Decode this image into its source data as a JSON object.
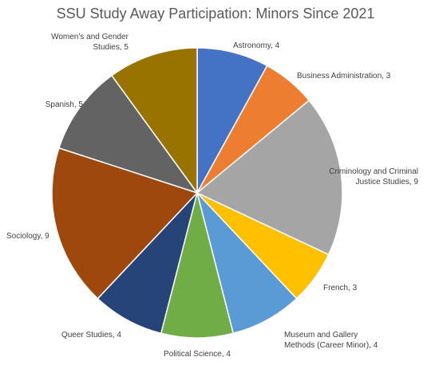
{
  "chart_data": {
    "type": "pie",
    "title": "SSU Study Away Participation: Minors Since 2021",
    "slices": [
      {
        "name": "Astronomy",
        "value": 4,
        "color": "#4472C4",
        "label_lines": [
          "Astronomy, 4"
        ]
      },
      {
        "name": "Business Administration",
        "value": 3,
        "color": "#ED7D31",
        "label_lines": [
          "Business Administration, 3"
        ]
      },
      {
        "name": "Criminology and Criminal Justice Studies",
        "value": 9,
        "color": "#A5A5A5",
        "label_lines": [
          "Criminology and Criminal",
          "Justice Studies, 9"
        ]
      },
      {
        "name": "French",
        "value": 3,
        "color": "#FFC000",
        "label_lines": [
          "French, 3"
        ]
      },
      {
        "name": "Museum and Gallery Methods (Career Minor)",
        "value": 4,
        "color": "#5B9BD5",
        "label_lines": [
          "Museum and Gallery",
          "Methods (Career Minor), 4"
        ]
      },
      {
        "name": "Political Science",
        "value": 4,
        "color": "#70AD47",
        "label_lines": [
          "Political Science, 4"
        ]
      },
      {
        "name": "Queer Studies",
        "value": 4,
        "color": "#264478",
        "label_lines": [
          "Queer Studies, 4"
        ]
      },
      {
        "name": "Sociology",
        "value": 9,
        "color": "#9E480E",
        "label_lines": [
          "Sociology, 9"
        ]
      },
      {
        "name": "Spanish",
        "value": 5,
        "color": "#636363",
        "label_lines": [
          "Spanish, 5"
        ]
      },
      {
        "name": "Women's and Gender Studies",
        "value": 5,
        "color": "#997300",
        "label_lines": [
          "Women’s and Gender",
          "Studies, 5"
        ]
      }
    ]
  }
}
